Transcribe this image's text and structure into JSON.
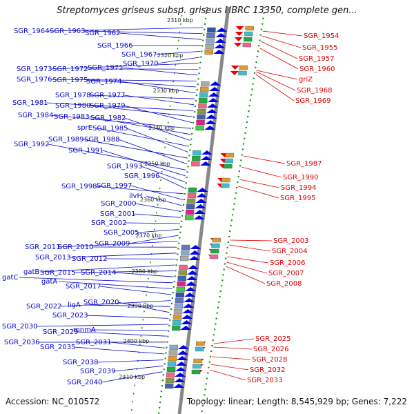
{
  "title": "Streptomyces griseus subsp. griseus NBRC 13350, complete gen...",
  "top_partial_label": "2310 kbp",
  "accession": "Accession: NC_010572",
  "topology": "Topology: linear; Length: 8,545,929 bp; Genes: 7,222",
  "colors": {
    "forward_label": "#0000cc",
    "reverse_label": "#dd0000",
    "forward_arrow": "#0000ee",
    "reverse_arrow": "#ee0000",
    "axis": "#888888",
    "dotted_track": "#118811"
  },
  "scale_labels": [
    "2320 kbp",
    "2330 kbp",
    "2340 kbp",
    "2350 kbp",
    "2360 kbp",
    "2370 kbp",
    "2380 kbp",
    "2390 kbp",
    "2400 kbp",
    "2410 kbp"
  ],
  "left_labels": [
    "SGR_1964",
    "SGR_1963",
    "SGR_1962",
    "SGR_1966",
    "SGR_1967",
    "SGR_1970",
    "SGR_1973",
    "SGR_1972",
    "SGR_1971",
    "SGR_1976",
    "SGR_1975",
    "SGR_1974",
    "SGR_1978",
    "SGR_1977",
    "SGR_1981",
    "SGR_1980",
    "SGR_1979",
    "SGR_1984",
    "SGR_1983",
    "SGR_1982",
    "sprE",
    "SGR_1985",
    "SGR_1989",
    "SGR_1988",
    "SGR_1992",
    "SGR_1991",
    "SGR_1993",
    "SGR_1996",
    "SGR_1998",
    "SGR_1997",
    "ilvH",
    "SGR_2000",
    "SGR_2001",
    "SGR_2002",
    "SGR_2005",
    "SGR_2009",
    "SGR_2011",
    "SGR_2010",
    "SGR_2013",
    "SGR_2012",
    "gatB",
    "SGR_2015",
    "SGR_2014",
    "gatC",
    "gatA",
    "SGR_2017",
    "SGR_2022",
    "ligA",
    "SGR_2020",
    "SGR_2023",
    "SGR_2030",
    "mnmA",
    "SGR_2029",
    "SGR_2036",
    "SGR_2031",
    "SGR_2035",
    "SGR_2038",
    "SGR_2039",
    "SGR_2040"
  ],
  "right_labels": [
    "SGR_1954",
    "SGR_1955",
    "SGR_1957",
    "SGR_1960",
    "griZ",
    "SGR_1968",
    "SGR_1969",
    "SGR_1987",
    "SGR_1990",
    "SGR_1994",
    "SGR_1995",
    "SGR_2003",
    "SGR_2004",
    "SGR_2006",
    "SGR_2007",
    "SGR_2008",
    "SGR_2025",
    "SGR_2026",
    "SGR_2028",
    "SGR_2032",
    "SGR_2033"
  ]
}
